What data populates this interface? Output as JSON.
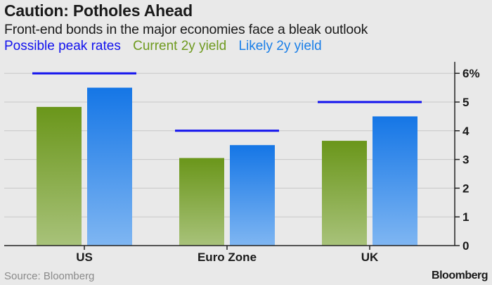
{
  "colors": {
    "background": "#e9e9e9",
    "peak": "#1212ee",
    "current": "#6f9a1f",
    "likely": "#1a7fe8",
    "grid": "#c8c8c8",
    "axis": "#222222",
    "text": "#1a1a1a",
    "source": "#8a8a8a"
  },
  "chart_data": {
    "type": "bar",
    "title": "Caution: Potholes Ahead",
    "subtitle": "Front-end bonds in the major economies face a bleak outlook",
    "categories": [
      "US",
      "Euro Zone",
      "UK"
    ],
    "series": [
      {
        "name": "Current 2y yield",
        "values": [
          4.83,
          3.05,
          3.65
        ],
        "color": "#6f9a1f"
      },
      {
        "name": "Likely 2y yield",
        "values": [
          5.5,
          3.5,
          4.5
        ],
        "color": "#1a7fe8"
      }
    ],
    "markers": {
      "name": "Possible peak rates",
      "values": [
        6.0,
        4.0,
        5.0
      ],
      "color": "#1212ee"
    },
    "legend": [
      "Possible peak rates",
      "Current 2y yield",
      "Likely 2y yield"
    ],
    "yticks": [
      "0",
      "1",
      "2",
      "3",
      "4",
      "5",
      "6%"
    ],
    "ylim": [
      0,
      6.4
    ],
    "xlabel": "",
    "ylabel": ""
  },
  "footer": {
    "source": "Source: Bloomberg",
    "brand": "Bloomberg"
  }
}
